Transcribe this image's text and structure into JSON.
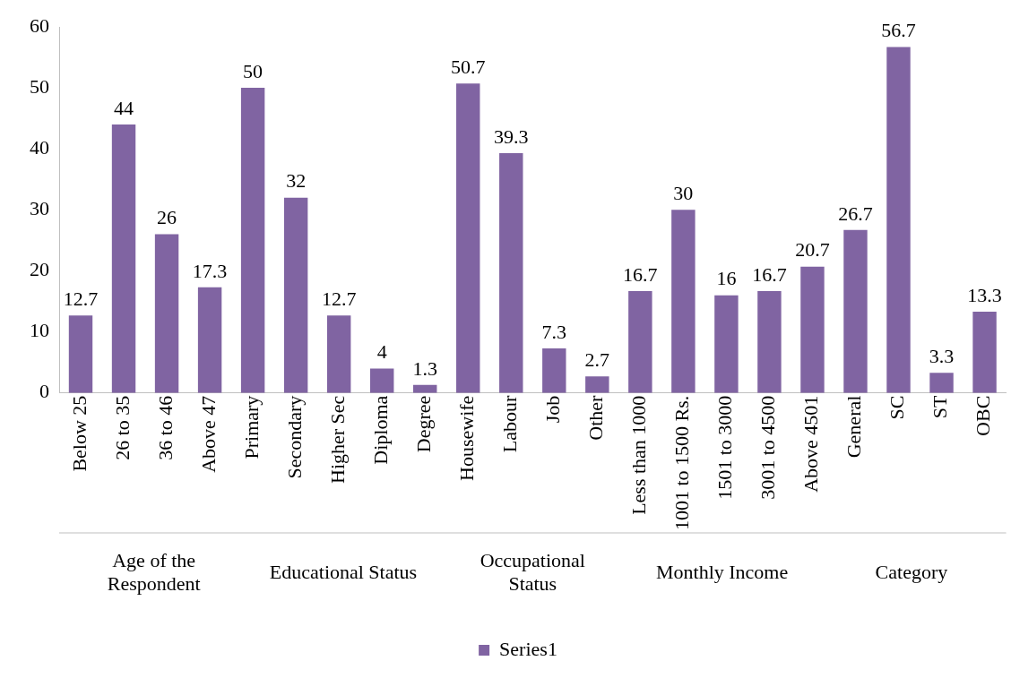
{
  "chart_data": {
    "type": "bar",
    "categories": [
      "Below 25",
      "26 to 35",
      "36 to 46",
      "Above 47",
      "Primary",
      "Secondary",
      "Higher Sec",
      "Diploma",
      "Degree",
      "Housewife",
      "Labour",
      "Job",
      "Other",
      "Less than 1000",
      "1001 to 1500 Rs.",
      "1501 to 3000",
      "3001 to 4500",
      "Above 4501",
      "General",
      "SC",
      "ST",
      "OBC"
    ],
    "series": [
      {
        "name": "Series1",
        "color": "#8064a2",
        "values": [
          12.7,
          44,
          26,
          17.3,
          50,
          32,
          12.7,
          4,
          1.3,
          50.7,
          39.3,
          7.3,
          2.7,
          16.7,
          30,
          16,
          16.7,
          20.7,
          26.7,
          56.7,
          3.3,
          13.3
        ]
      }
    ],
    "ylim": [
      0,
      60
    ],
    "yticks": [
      0,
      10,
      20,
      30,
      40,
      50,
      60
    ],
    "grid": false,
    "legend": "bottom",
    "data_labels": true,
    "annotations": [
      "Age of the Respondent",
      "Educational Status",
      "Occupational Status",
      "Monthly Income",
      "Category"
    ]
  }
}
